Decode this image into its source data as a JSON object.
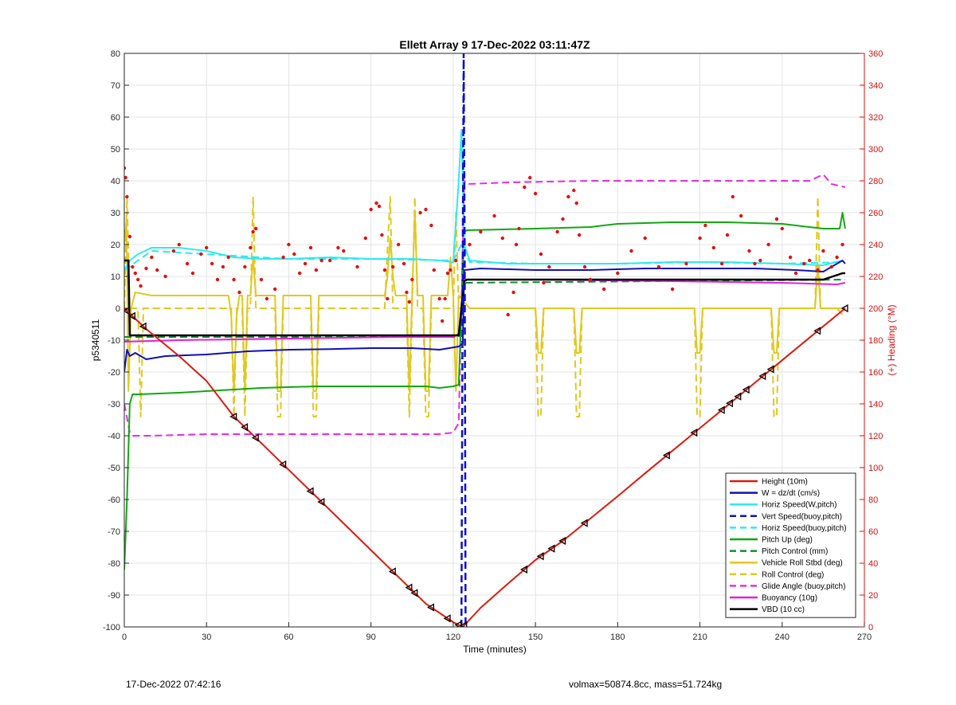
{
  "chart_data": {
    "type": "line",
    "title": "Ellett Array 9 17-Dec-2022 03:11:47Z",
    "xlabel": "Time (minutes)",
    "ylabel": "p5340511",
    "y2label": "(+) Heading (°M)",
    "xlim": [
      0,
      270
    ],
    "ylim": [
      -100,
      80
    ],
    "y2lim": [
      0,
      360
    ],
    "xticks": [
      0,
      30,
      60,
      90,
      120,
      150,
      180,
      210,
      240,
      270
    ],
    "yticks": [
      -100,
      -90,
      -80,
      -70,
      -60,
      -50,
      -40,
      -30,
      -20,
      -10,
      0,
      10,
      20,
      30,
      40,
      50,
      60,
      70,
      80
    ],
    "y2ticks": [
      0,
      20,
      40,
      60,
      80,
      100,
      120,
      140,
      160,
      180,
      200,
      220,
      240,
      260,
      280,
      300,
      320,
      340,
      360
    ],
    "grid": true,
    "legend_position": "bottom-right",
    "colors": {
      "height": "#d81b10",
      "w": "#1010b4",
      "horiz_w": "#30e8f0",
      "vert_buoy": "#1010c8",
      "horiz_buoy": "#30e8f0",
      "pitch": "#10a810",
      "pitch_ctrl": "#108c30",
      "roll": "#e0c820",
      "roll_ctrl": "#e0c820",
      "glide": "#e030e0",
      "buoyancy": "#e020e0",
      "vbd": "#000000",
      "heading": "#e01010",
      "axis_right": "#d01010"
    },
    "series": [
      {
        "name": "Height (10m)",
        "key": "height",
        "style": "solid",
        "width": 2,
        "x": [
          0,
          8,
          20,
          30,
          40,
          50,
          60,
          70,
          80,
          90,
          100,
          110,
          120,
          123.5,
          130,
          140,
          150,
          160,
          170,
          180,
          190,
          200,
          210,
          220,
          230,
          240,
          250,
          263
        ],
        "y": [
          0,
          -6.5,
          -15,
          -22.8,
          -34,
          -42.3,
          -50.7,
          -59.1,
          -67.5,
          -75.9,
          -84.3,
          -92.7,
          -98.5,
          -100,
          -94,
          -86.4,
          -79,
          -73,
          -66,
          -59,
          -51.8,
          -44.7,
          -37.6,
          -30.5,
          -23.4,
          -16.3,
          -9.2,
          0
        ]
      },
      {
        "name": "W = dz/dt (cm/s)",
        "key": "w",
        "style": "solid",
        "width": 2,
        "x": [
          0,
          1,
          2,
          4,
          8,
          15,
          30,
          45,
          60,
          75,
          90,
          105,
          115,
          122,
          123.5,
          124,
          130,
          150,
          170,
          190,
          210,
          230,
          245,
          255,
          262,
          263
        ],
        "y": [
          -20,
          -13,
          -15,
          -14,
          -16,
          -15,
          -14.5,
          -13.5,
          -13,
          -12.8,
          -12.5,
          -12.5,
          -13,
          -12,
          -11,
          12,
          12.5,
          12,
          12,
          12.5,
          12.5,
          12.5,
          12,
          11.5,
          15,
          14
        ]
      },
      {
        "name": "Horiz Speed(W,pitch)",
        "key": "horiz_w",
        "style": "solid",
        "width": 2,
        "x": [
          0,
          2,
          5,
          10,
          20,
          30,
          40,
          50,
          60,
          75,
          90,
          105,
          115,
          120,
          122,
          123,
          124,
          126,
          140,
          160,
          180,
          200,
          220,
          240,
          255,
          262
        ],
        "y": [
          12,
          15,
          17,
          19,
          19,
          18,
          16,
          15.5,
          15.5,
          16,
          15.5,
          15.5,
          15,
          14.5,
          40,
          56,
          20,
          15,
          14,
          14,
          14,
          14.5,
          14.5,
          14,
          13.5,
          15
        ]
      },
      {
        "name": "Vert Speed(buoy,pitch)",
        "key": "vert_buoy",
        "style": "dash",
        "width": 2.5,
        "x": [
          123,
          123.5,
          123.8,
          124.2,
          124.5
        ],
        "y": [
          -100,
          20,
          80,
          20,
          -100
        ]
      },
      {
        "name": "Horiz Speed(buoy,pitch)",
        "key": "horiz_buoy",
        "style": "dash",
        "width": 2,
        "x": [
          0,
          10,
          30,
          60,
          90,
          120,
          123,
          126,
          150,
          180,
          210,
          240,
          262
        ],
        "y": [
          12,
          18,
          17,
          15.5,
          15.5,
          15,
          20,
          14.5,
          14,
          14,
          14.5,
          14,
          14.5
        ]
      },
      {
        "name": "Pitch Up (deg)",
        "key": "pitch",
        "style": "solid",
        "width": 2,
        "x": [
          0,
          1,
          2,
          3,
          5,
          20,
          40,
          50,
          70,
          90,
          110,
          115,
          120,
          122,
          124,
          125,
          150,
          170,
          180,
          200,
          220,
          240,
          255,
          261,
          262,
          263
        ],
        "y": [
          -82,
          -60,
          -30,
          -27,
          -27,
          -26.5,
          -25.5,
          -25,
          -24.5,
          -24.5,
          -24.5,
          -25,
          -24.5,
          -24,
          24,
          24.5,
          25,
          25.5,
          26.5,
          27,
          27,
          26.5,
          25,
          25,
          30,
          25
        ]
      },
      {
        "name": "Pitch Control (mm)",
        "key": "pitch_ctrl",
        "style": "dash",
        "width": 2,
        "x": [
          0,
          2,
          122,
          123,
          124,
          263
        ],
        "y": [
          -9,
          -9,
          -9,
          0,
          8,
          9
        ]
      },
      {
        "name": "Vehicle Roll Stbd (deg)",
        "key": "roll",
        "style": "solid",
        "width": 2,
        "x": [
          0,
          0.8,
          1.5,
          2.5,
          4,
          10,
          38,
          39,
          40,
          41,
          42,
          43,
          44,
          45,
          46,
          47,
          48,
          49,
          55,
          56,
          57,
          58,
          59,
          68,
          69,
          70,
          71,
          72,
          85,
          95,
          96,
          97,
          98,
          99,
          103,
          104,
          105,
          106,
          107,
          109,
          110,
          111,
          112,
          113,
          118,
          119,
          120,
          121,
          122,
          124,
          126,
          150,
          151,
          152,
          153,
          154,
          164,
          165,
          166,
          167,
          168,
          190,
          200,
          208,
          209,
          210,
          211,
          212,
          220,
          230,
          236,
          237,
          238,
          239,
          240,
          250,
          252,
          253,
          254,
          255,
          260,
          262
        ],
        "y": [
          20,
          28,
          -26,
          0,
          5,
          4,
          4,
          -2,
          -26,
          -2,
          4,
          4,
          -26,
          4,
          4,
          16,
          4,
          4,
          4,
          -26,
          -26,
          4,
          4,
          4,
          -26,
          -26,
          4,
          4,
          4,
          4,
          10,
          22,
          10,
          4,
          4,
          -26,
          4,
          30,
          4,
          4,
          -26,
          -26,
          4,
          4,
          4,
          16,
          4,
          -26,
          4,
          2,
          0,
          0,
          -14,
          -14,
          0,
          0,
          0,
          -14,
          -14,
          0,
          0,
          0,
          0,
          0,
          -14,
          -14,
          0,
          0,
          0,
          0,
          0,
          -14,
          -14,
          0,
          0,
          0,
          0,
          14,
          0,
          0,
          0,
          -2
        ]
      },
      {
        "name": "Roll Control (deg)",
        "key": "roll_ctrl",
        "style": "dash",
        "width": 2,
        "x": [
          0,
          1,
          2,
          3,
          5,
          6,
          7,
          10,
          38,
          39,
          40,
          41,
          42,
          43,
          44,
          45,
          46,
          47,
          48,
          49,
          55,
          56,
          57,
          58,
          59,
          68,
          69,
          70,
          71,
          72,
          95,
          96,
          97,
          98,
          99,
          103,
          104,
          105,
          106,
          107,
          109,
          110,
          111,
          112,
          113,
          120,
          121,
          122,
          124,
          150,
          151,
          152,
          153,
          154,
          164,
          165,
          166,
          167,
          168,
          200,
          208,
          209,
          210,
          211,
          212,
          236,
          237,
          238,
          239,
          240,
          252,
          253,
          254,
          255,
          262
        ],
        "y": [
          0,
          35,
          0,
          0,
          0,
          -34,
          0,
          0,
          0,
          0,
          -34,
          0,
          0,
          0,
          -34,
          0,
          0,
          35,
          0,
          0,
          0,
          -34,
          -34,
          0,
          0,
          0,
          -34,
          -34,
          0,
          0,
          0,
          18,
          35,
          0,
          0,
          0,
          -34,
          0,
          35,
          0,
          0,
          -34,
          -34,
          0,
          0,
          0,
          30,
          0,
          0,
          0,
          -34,
          -34,
          0,
          0,
          0,
          -34,
          -34,
          0,
          0,
          0,
          0,
          -34,
          -34,
          0,
          0,
          0,
          -34,
          -34,
          0,
          0,
          0,
          35,
          0,
          0,
          0
        ]
      },
      {
        "name": "Glide Angle (buoy,pitch)",
        "key": "glide",
        "style": "dash",
        "width": 2,
        "x": [
          0,
          2,
          3,
          10,
          30,
          60,
          90,
          110,
          115,
          120,
          122,
          124,
          125,
          140,
          170,
          200,
          230,
          250,
          255,
          258,
          263
        ],
        "y": [
          -30,
          -39,
          -40,
          -40,
          -39.5,
          -39.5,
          -39.5,
          -39.5,
          -39.5,
          -39,
          -36,
          40,
          39,
          39.5,
          40,
          40,
          40,
          40,
          42,
          39,
          38
        ]
      },
      {
        "name": "Buoyancy (10g)",
        "key": "buoyancy",
        "style": "solid",
        "width": 2,
        "x": [
          0,
          20,
          60,
          100,
          120,
          122,
          124,
          150,
          200,
          240,
          260,
          263
        ],
        "y": [
          -10.5,
          -10,
          -9.5,
          -9,
          -9,
          -8,
          9,
          9,
          8.5,
          8,
          7.5,
          8
        ]
      },
      {
        "name": "VBD (10 cc)",
        "key": "vbd",
        "style": "solid",
        "width": 2.5,
        "x": [
          0,
          1.5,
          2,
          10,
          60,
          100,
          122,
          123,
          124,
          125,
          150,
          200,
          255,
          262,
          263
        ],
        "y": [
          15,
          15,
          -8.5,
          -8.5,
          -8.5,
          -8.5,
          -8.5,
          0,
          8.5,
          9,
          9,
          9,
          9,
          11,
          11
        ]
      }
    ],
    "heading_points": {
      "name": "(+) Heading (°M)",
      "key": "heading",
      "x": [
        0,
        0.5,
        1,
        2,
        3,
        4,
        5,
        6,
        8,
        10,
        12,
        15,
        18,
        20,
        23,
        25,
        28,
        30,
        32,
        34,
        36,
        38,
        40,
        42,
        44,
        46,
        47,
        48,
        50,
        52,
        55,
        58,
        60,
        62,
        64,
        66,
        68,
        70,
        72,
        75,
        78,
        80,
        85,
        88,
        90,
        92,
        93,
        94,
        95,
        96,
        98,
        100,
        102,
        103,
        104,
        105,
        108,
        110,
        112,
        113,
        115,
        116,
        117,
        118,
        119,
        121,
        126,
        130,
        135,
        138,
        140,
        142,
        143,
        144,
        146,
        148,
        150,
        152,
        153,
        155,
        158,
        160,
        162,
        164,
        165,
        166,
        168,
        170,
        175,
        180,
        185,
        190,
        195,
        200,
        205,
        210,
        212,
        215,
        218,
        220,
        222,
        225,
        228,
        230,
        232,
        235,
        238,
        240,
        243,
        245,
        248,
        250,
        253,
        255,
        258,
        260,
        262
      ],
      "y": [
        288,
        282,
        270,
        245,
        226,
        222,
        218,
        214,
        225,
        232,
        224,
        220,
        236,
        240,
        228,
        222,
        234,
        238,
        228,
        218,
        226,
        232,
        218,
        210,
        226,
        238,
        248,
        250,
        218,
        206,
        212,
        232,
        240,
        234,
        222,
        228,
        238,
        224,
        230,
        230,
        238,
        236,
        226,
        244,
        262,
        266,
        264,
        246,
        224,
        206,
        226,
        240,
        228,
        210,
        204,
        218,
        260,
        262,
        252,
        224,
        206,
        192,
        206,
        222,
        224,
        230,
        240,
        248,
        258,
        244,
        196,
        210,
        240,
        250,
        276,
        282,
        272,
        234,
        216,
        226,
        248,
        256,
        270,
        274,
        266,
        246,
        226,
        218,
        212,
        222,
        236,
        244,
        226,
        212,
        228,
        244,
        252,
        238,
        228,
        246,
        270,
        258,
        236,
        228,
        230,
        240,
        256,
        250,
        232,
        222,
        228,
        230,
        224,
        236,
        226,
        232,
        240
      ]
    },
    "markers": {
      "key": "markers",
      "x": [
        1,
        3,
        7,
        40,
        44,
        48,
        58,
        68,
        72,
        98,
        104,
        106,
        112,
        118,
        122,
        124,
        146,
        152,
        156,
        160,
        168,
        198,
        208,
        218,
        221,
        224,
        227,
        233,
        236,
        253,
        263
      ]
    },
    "legend": [
      {
        "label": "Height (10m)",
        "key": "height",
        "style": "solid"
      },
      {
        "label": "W = dz/dt (cm/s)",
        "key": "w",
        "style": "solid"
      },
      {
        "label": "Horiz Speed(W,pitch)",
        "key": "horiz_w",
        "style": "solid"
      },
      {
        "label": "Vert Speed(buoy,pitch)",
        "key": "vert_buoy",
        "style": "dash"
      },
      {
        "label": "Horiz Speed(buoy,pitch)",
        "key": "horiz_buoy",
        "style": "dash"
      },
      {
        "label": "Pitch Up (deg)",
        "key": "pitch",
        "style": "solid"
      },
      {
        "label": "Pitch Control (mm)",
        "key": "pitch_ctrl",
        "style": "dash"
      },
      {
        "label": "Vehicle Roll Stbd (deg)",
        "key": "roll",
        "style": "solid"
      },
      {
        "label": "Roll Control (deg)",
        "key": "roll_ctrl",
        "style": "dash"
      },
      {
        "label": "Glide Angle (buoy,pitch)",
        "key": "glide",
        "style": "dash"
      },
      {
        "label": "Buoyancy (10g)",
        "key": "buoyancy",
        "style": "solid"
      },
      {
        "label": "VBD (10 cc)",
        "key": "vbd",
        "style": "solid"
      }
    ]
  },
  "footer": {
    "left": "17-Dec-2022 07:42:16",
    "right": "volmax=50874.8cc, mass=51.724kg"
  }
}
